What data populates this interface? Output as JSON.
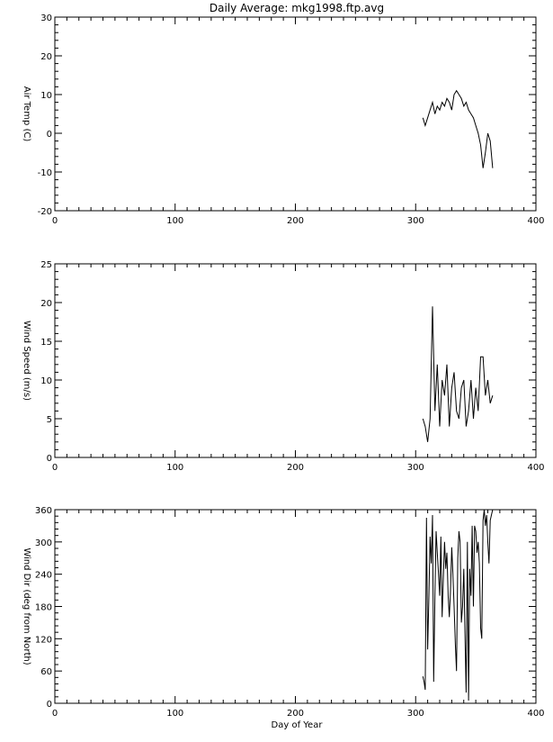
{
  "figure": {
    "title": "Daily Average: mkg1998.ftp.avg",
    "xlabel": "Day of Year"
  },
  "chart_data": [
    {
      "type": "line",
      "title": "Daily Average: mkg1998.ftp.avg",
      "xlabel": "",
      "ylabel": "Air Temp (C)",
      "xlim": [
        0,
        400
      ],
      "ylim": [
        -20,
        30
      ],
      "xticks": [
        0,
        100,
        200,
        300,
        400
      ],
      "yticks": [
        -20,
        -10,
        0,
        10,
        20,
        30
      ],
      "grid": false,
      "series": [
        {
          "x": [
            306,
            308,
            310,
            312,
            314,
            316,
            318,
            320,
            322,
            324,
            326,
            328,
            330,
            332,
            334,
            336,
            338,
            340,
            342,
            344,
            346,
            348,
            350,
            352,
            354,
            356,
            358,
            360,
            362,
            364
          ],
          "y": [
            4,
            2,
            4,
            6,
            8,
            5,
            7,
            6,
            8,
            7,
            9,
            8,
            6,
            10,
            11,
            10,
            9,
            7,
            8,
            6,
            5,
            4,
            2,
            0,
            -3,
            -9,
            -5,
            0,
            -2,
            -9
          ]
        }
      ]
    },
    {
      "type": "line",
      "title": "",
      "xlabel": "",
      "ylabel": "Wind Speed (m/s)",
      "xlim": [
        0,
        400
      ],
      "ylim": [
        0,
        25
      ],
      "xticks": [
        0,
        100,
        200,
        300,
        400
      ],
      "yticks": [
        0,
        5,
        10,
        15,
        20,
        25
      ],
      "grid": false,
      "series": [
        {
          "x": [
            306,
            308,
            310,
            312,
            314,
            316,
            318,
            320,
            322,
            324,
            326,
            328,
            330,
            332,
            334,
            336,
            338,
            340,
            342,
            344,
            346,
            348,
            350,
            352,
            354,
            356,
            358,
            360,
            362,
            364
          ],
          "y": [
            5,
            4,
            2,
            5,
            19.5,
            6,
            12,
            4,
            10,
            8,
            12,
            4,
            9,
            11,
            6,
            5,
            9,
            10,
            4,
            6,
            10,
            5,
            9,
            6,
            13,
            13,
            8,
            10,
            7,
            8
          ]
        }
      ]
    },
    {
      "type": "line",
      "title": "",
      "xlabel": "Day of Year",
      "ylabel": "Wind Dir (deg from North)",
      "xlim": [
        0,
        400
      ],
      "ylim": [
        0,
        360
      ],
      "xticks": [
        0,
        100,
        200,
        300,
        400
      ],
      "yticks": [
        0,
        60,
        120,
        180,
        240,
        300,
        360
      ],
      "grid": false,
      "series": [
        {
          "x": [
            306,
            307,
            308,
            309,
            310,
            311,
            312,
            313,
            314,
            315,
            316,
            317,
            318,
            319,
            320,
            321,
            322,
            323,
            324,
            325,
            326,
            327,
            328,
            329,
            330,
            331,
            332,
            333,
            334,
            335,
            336,
            337,
            338,
            339,
            340,
            341,
            342,
            343,
            344,
            345,
            346,
            347,
            348,
            349,
            350,
            351,
            352,
            353,
            354,
            355,
            356,
            357,
            358,
            359,
            360,
            361,
            362,
            363,
            364
          ],
          "y": [
            50,
            40,
            25,
            345,
            100,
            200,
            310,
            260,
            350,
            40,
            200,
            320,
            280,
            240,
            200,
            310,
            160,
            230,
            300,
            250,
            280,
            200,
            160,
            210,
            290,
            240,
            180,
            110,
            60,
            270,
            320,
            300,
            150,
            180,
            250,
            130,
            20,
            300,
            5,
            250,
            200,
            330,
            180,
            330,
            320,
            280,
            300,
            260,
            140,
            120,
            340,
            360,
            330,
            350,
            300,
            260,
            340,
            350,
            360
          ]
        }
      ]
    }
  ]
}
